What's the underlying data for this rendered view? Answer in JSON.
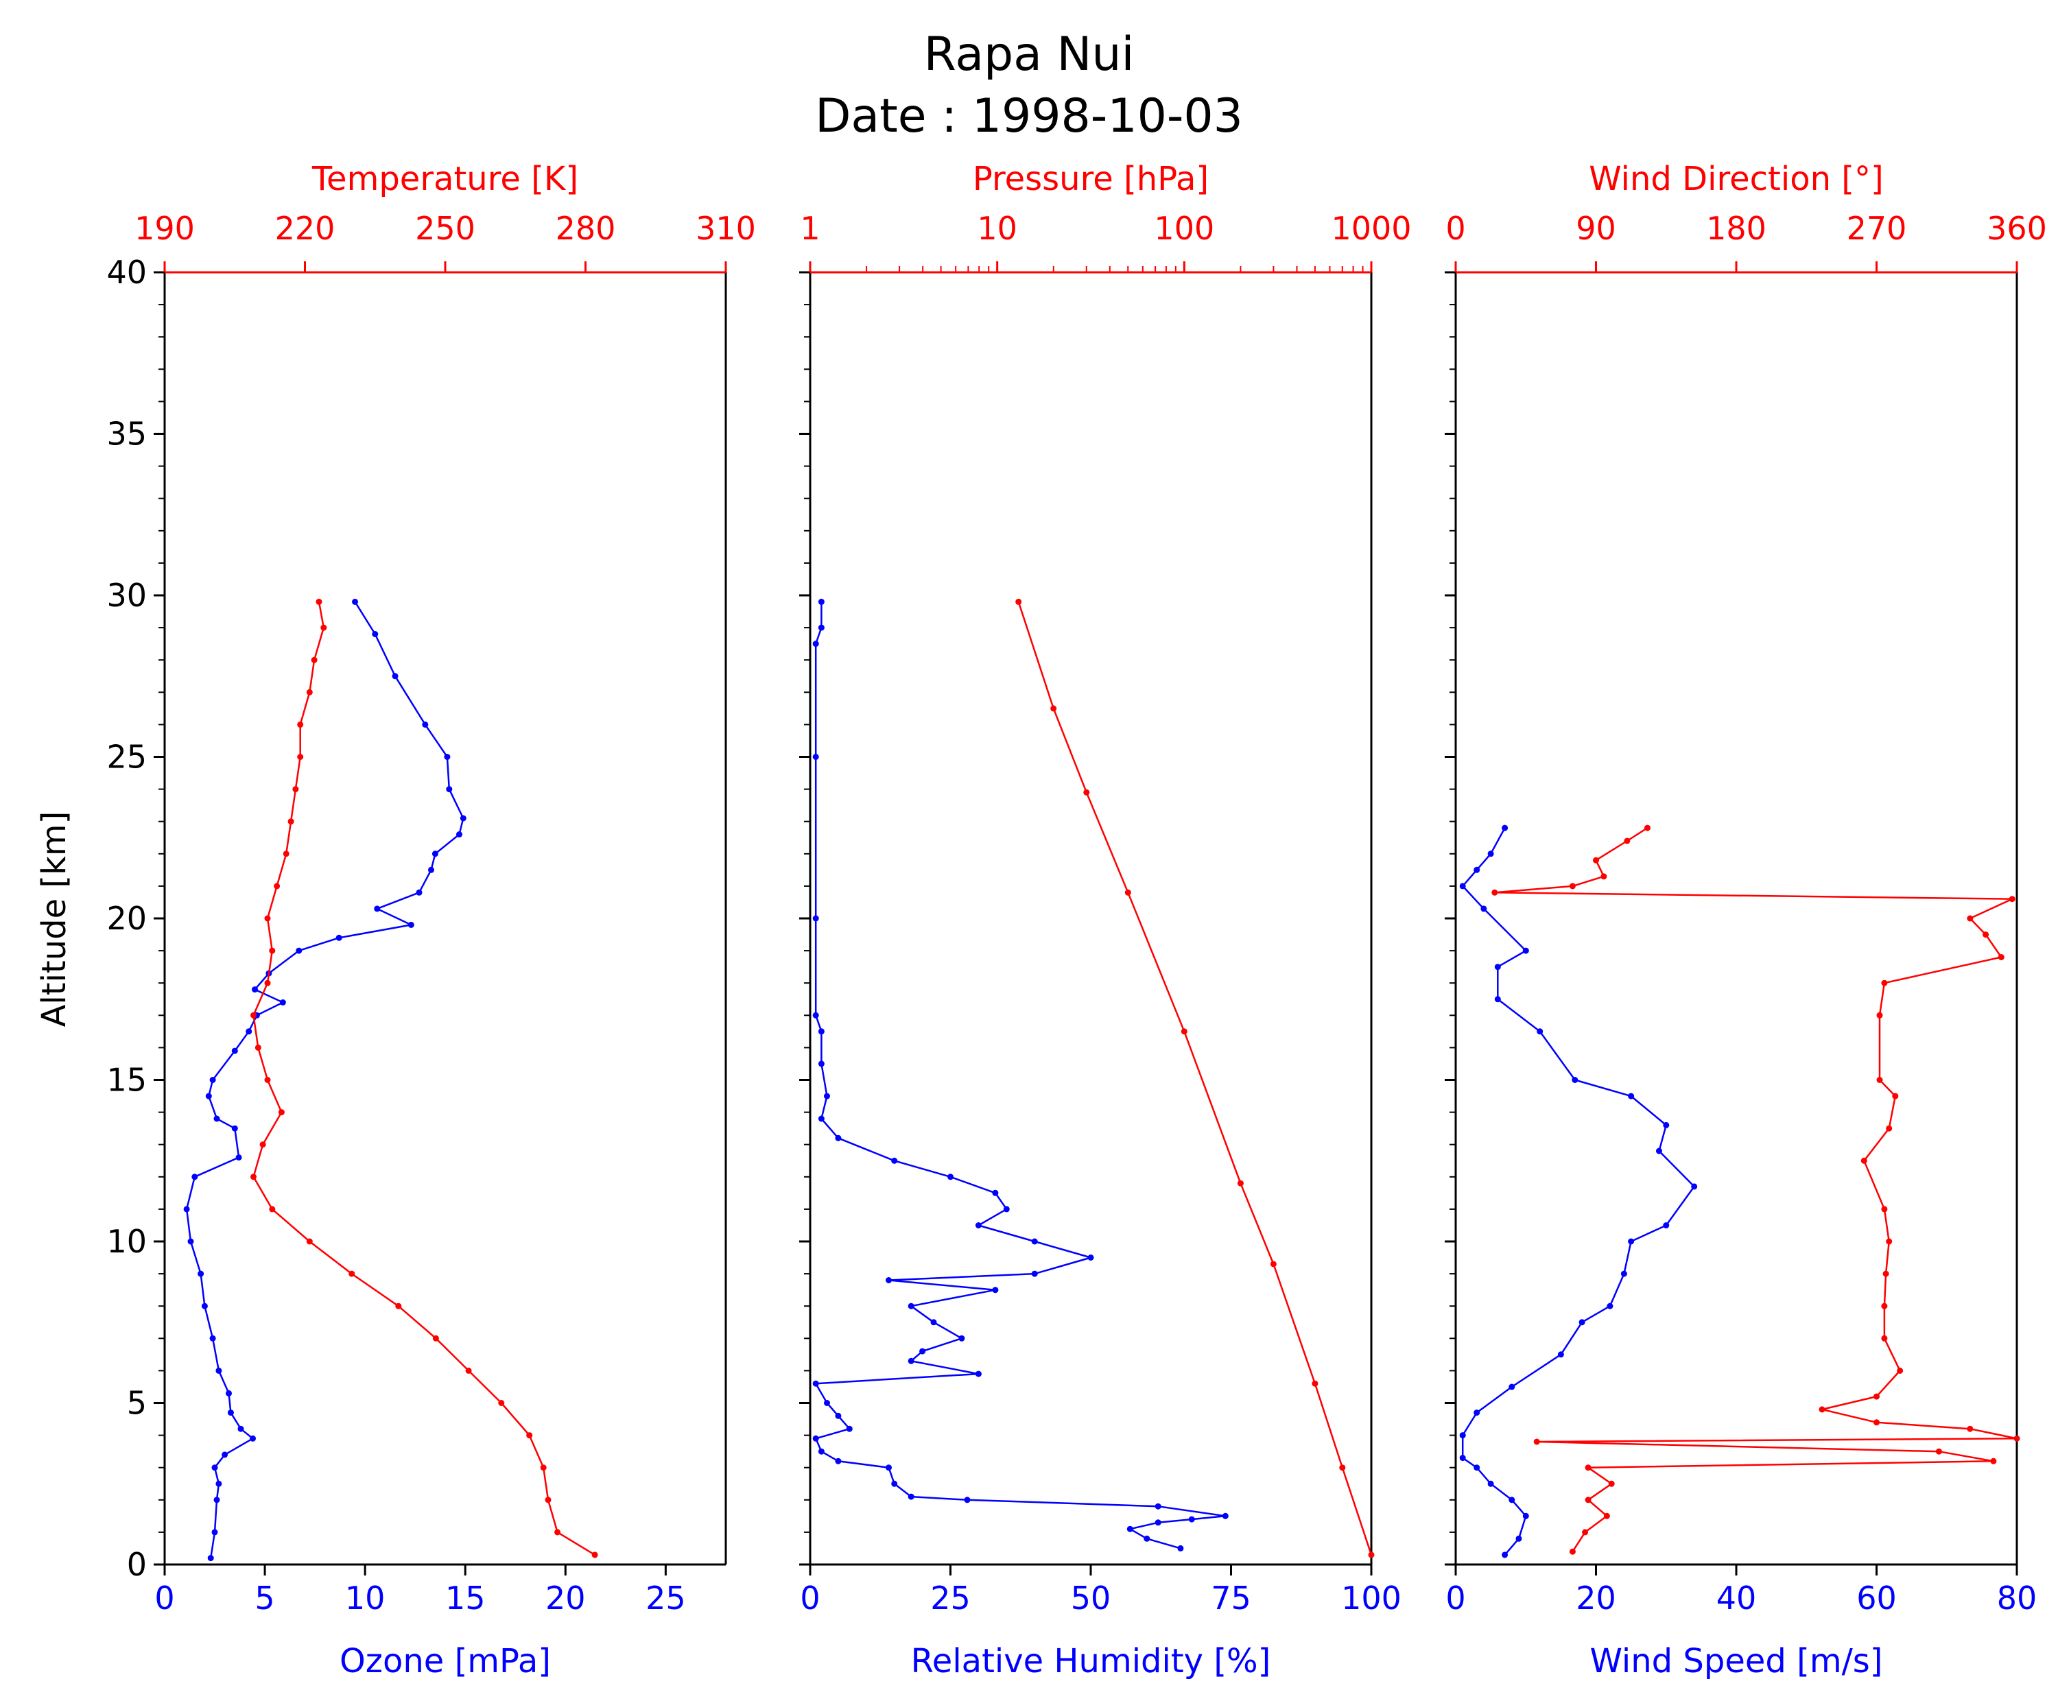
{
  "title_line1": "Rapa Nui",
  "title_line2": "Date : 1998-10-03",
  "colors": {
    "primary": "#0000ff",
    "secondary": "#ff0000",
    "frame": "#000000"
  },
  "shared_y": {
    "label": "Altitude [km]",
    "range": [
      0,
      40
    ],
    "ticks": [
      "0",
      "5",
      "10",
      "15",
      "20",
      "25",
      "30",
      "35",
      "40"
    ]
  },
  "chart_data": [
    {
      "type": "line",
      "bottom_axis": {
        "label": "Ozone [mPa]",
        "range": [
          0,
          28
        ],
        "ticks": [
          "0",
          "5",
          "10",
          "15",
          "20",
          "25"
        ],
        "tick_values": [
          0,
          5,
          10,
          15,
          20,
          25
        ]
      },
      "top_axis": {
        "label": "Temperature [K]",
        "range": [
          190,
          310
        ],
        "ticks": [
          "190",
          "220",
          "250",
          "280",
          "310"
        ],
        "tick_values": [
          190,
          220,
          250,
          280,
          310
        ]
      },
      "series": [
        {
          "axis": "bottom",
          "color": "blue",
          "points": [
            [
              2.3,
              0.2
            ],
            [
              2.5,
              1.0
            ],
            [
              2.6,
              2.0
            ],
            [
              2.7,
              2.5
            ],
            [
              2.5,
              3.0
            ],
            [
              3.0,
              3.4
            ],
            [
              4.4,
              3.9
            ],
            [
              3.8,
              4.2
            ],
            [
              3.3,
              4.7
            ],
            [
              3.2,
              5.3
            ],
            [
              2.7,
              6.0
            ],
            [
              2.4,
              7.0
            ],
            [
              2.0,
              8.0
            ],
            [
              1.8,
              9.0
            ],
            [
              1.3,
              10.0
            ],
            [
              1.1,
              11.0
            ],
            [
              1.5,
              12.0
            ],
            [
              3.7,
              12.6
            ],
            [
              3.5,
              13.5
            ],
            [
              2.6,
              13.8
            ],
            [
              2.2,
              14.5
            ],
            [
              2.4,
              15.0
            ],
            [
              3.5,
              15.9
            ],
            [
              4.2,
              16.5
            ],
            [
              4.6,
              17.0
            ],
            [
              5.9,
              17.4
            ],
            [
              4.5,
              17.8
            ],
            [
              5.2,
              18.3
            ],
            [
              6.7,
              19.0
            ],
            [
              8.7,
              19.4
            ],
            [
              12.3,
              19.8
            ],
            [
              10.6,
              20.3
            ],
            [
              12.7,
              20.8
            ],
            [
              13.3,
              21.5
            ],
            [
              13.5,
              22.0
            ],
            [
              14.7,
              22.6
            ],
            [
              14.9,
              23.1
            ],
            [
              14.2,
              24.0
            ],
            [
              14.1,
              25.0
            ],
            [
              13.0,
              26.0
            ],
            [
              11.5,
              27.5
            ],
            [
              10.5,
              28.8
            ],
            [
              9.5,
              29.8
            ]
          ]
        },
        {
          "axis": "top",
          "color": "red",
          "points": [
            [
              282.0,
              0.3
            ],
            [
              274.0,
              1.0
            ],
            [
              272.0,
              2.0
            ],
            [
              271.0,
              3.0
            ],
            [
              268.0,
              4.0
            ],
            [
              262.0,
              5.0
            ],
            [
              255.0,
              6.0
            ],
            [
              248.0,
              7.0
            ],
            [
              240.0,
              8.0
            ],
            [
              230.0,
              9.0
            ],
            [
              221.0,
              10.0
            ],
            [
              213.0,
              11.0
            ],
            [
              209.0,
              12.0
            ],
            [
              211.0,
              13.0
            ],
            [
              215.0,
              14.0
            ],
            [
              212.0,
              15.0
            ],
            [
              210.0,
              16.0
            ],
            [
              209.0,
              17.0
            ],
            [
              212.0,
              18.0
            ],
            [
              213.0,
              19.0
            ],
            [
              212.0,
              20.0
            ],
            [
              214.0,
              21.0
            ],
            [
              216.0,
              22.0
            ],
            [
              217.0,
              23.0
            ],
            [
              218.0,
              24.0
            ],
            [
              219.0,
              25.0
            ],
            [
              219.0,
              26.0
            ],
            [
              221.0,
              27.0
            ],
            [
              222.0,
              28.0
            ],
            [
              224.0,
              29.0
            ],
            [
              223.0,
              29.8
            ]
          ]
        }
      ]
    },
    {
      "type": "line",
      "bottom_axis": {
        "label": "Relative Humidity [%]",
        "range": [
          0,
          100
        ],
        "ticks": [
          "0",
          "25",
          "50",
          "75",
          "100"
        ],
        "tick_values": [
          0,
          25,
          50,
          75,
          100
        ]
      },
      "top_axis": {
        "label": "Pressure [hPa]",
        "range": [
          1,
          1000
        ],
        "scale": "log",
        "ticks": [
          "1",
          "10",
          "100",
          "1000"
        ],
        "tick_values": [
          1,
          10,
          100,
          1000
        ]
      },
      "series": [
        {
          "axis": "bottom",
          "color": "blue",
          "points": [
            [
              66,
              0.5
            ],
            [
              60,
              0.8
            ],
            [
              57,
              1.1
            ],
            [
              62,
              1.3
            ],
            [
              68,
              1.4
            ],
            [
              74,
              1.5
            ],
            [
              62,
              1.8
            ],
            [
              28,
              2.0
            ],
            [
              18,
              2.1
            ],
            [
              15,
              2.5
            ],
            [
              14,
              3.0
            ],
            [
              5,
              3.2
            ],
            [
              2,
              3.5
            ],
            [
              1,
              3.9
            ],
            [
              7,
              4.2
            ],
            [
              5,
              4.6
            ],
            [
              3,
              5.0
            ],
            [
              1,
              5.6
            ],
            [
              30,
              5.9
            ],
            [
              18,
              6.3
            ],
            [
              20,
              6.6
            ],
            [
              27,
              7.0
            ],
            [
              22,
              7.5
            ],
            [
              18,
              8.0
            ],
            [
              33,
              8.5
            ],
            [
              14,
              8.8
            ],
            [
              40,
              9.0
            ],
            [
              50,
              9.5
            ],
            [
              40,
              10.0
            ],
            [
              30,
              10.5
            ],
            [
              35,
              11.0
            ],
            [
              33,
              11.5
            ],
            [
              25,
              12.0
            ],
            [
              15,
              12.5
            ],
            [
              5,
              13.2
            ],
            [
              2,
              13.8
            ],
            [
              3,
              14.5
            ],
            [
              2,
              15.5
            ],
            [
              2,
              16.5
            ],
            [
              1,
              17.0
            ],
            [
              1,
              20.0
            ],
            [
              1,
              25.0
            ],
            [
              1,
              28.5
            ],
            [
              2,
              29.0
            ],
            [
              2,
              29.8
            ]
          ]
        },
        {
          "axis": "top",
          "color": "red",
          "points": [
            [
              1000,
              0.3
            ],
            [
              700,
              3.0
            ],
            [
              500,
              5.6
            ],
            [
              300,
              9.3
            ],
            [
              200,
              11.8
            ],
            [
              100,
              16.5
            ],
            [
              50,
              20.8
            ],
            [
              30,
              23.9
            ],
            [
              20,
              26.5
            ],
            [
              13,
              29.8
            ]
          ]
        }
      ]
    },
    {
      "type": "line",
      "bottom_axis": {
        "label": "Wind Speed [m/s]",
        "range": [
          0,
          80
        ],
        "ticks": [
          "0",
          "20",
          "40",
          "60",
          "80"
        ],
        "tick_values": [
          0,
          20,
          40,
          60,
          80
        ]
      },
      "top_axis": {
        "label": "Wind Direction [°]",
        "range": [
          0,
          360
        ],
        "ticks": [
          "0",
          "90",
          "180",
          "270",
          "360"
        ],
        "tick_values": [
          0,
          90,
          180,
          270,
          360
        ]
      },
      "series": [
        {
          "axis": "bottom",
          "color": "blue",
          "points": [
            [
              7,
              0.3
            ],
            [
              9,
              0.8
            ],
            [
              10,
              1.5
            ],
            [
              8,
              2.0
            ],
            [
              5,
              2.5
            ],
            [
              3,
              3.0
            ],
            [
              1,
              3.3
            ],
            [
              1,
              4.0
            ],
            [
              3,
              4.7
            ],
            [
              8,
              5.5
            ],
            [
              15,
              6.5
            ],
            [
              18,
              7.5
            ],
            [
              22,
              8.0
            ],
            [
              24,
              9.0
            ],
            [
              25,
              10.0
            ],
            [
              30,
              10.5
            ],
            [
              34,
              11.7
            ],
            [
              29,
              12.8
            ],
            [
              30,
              13.6
            ],
            [
              25,
              14.5
            ],
            [
              17,
              15.0
            ],
            [
              12,
              16.5
            ],
            [
              6,
              17.5
            ],
            [
              6,
              18.5
            ],
            [
              10,
              19.0
            ],
            [
              4,
              20.3
            ],
            [
              1,
              21.0
            ],
            [
              3,
              21.5
            ],
            [
              5,
              22.0
            ],
            [
              7,
              22.8
            ]
          ]
        },
        {
          "axis": "top",
          "color": "red",
          "points": [
            [
              75,
              0.4
            ],
            [
              83,
              1.0
            ],
            [
              97,
              1.5
            ],
            [
              85,
              2.0
            ],
            [
              100,
              2.5
            ],
            [
              85,
              3.0
            ],
            [
              345,
              3.2
            ],
            [
              310,
              3.5
            ],
            [
              52,
              3.8
            ],
            [
              360,
              3.9
            ],
            [
              330,
              4.2
            ],
            [
              270,
              4.4
            ],
            [
              235,
              4.8
            ],
            [
              270,
              5.2
            ],
            [
              285,
              6.0
            ],
            [
              275,
              7.0
            ],
            [
              275,
              8.0
            ],
            [
              276,
              9.0
            ],
            [
              278,
              10.0
            ],
            [
              275,
              11.0
            ],
            [
              262,
              12.5
            ],
            [
              278,
              13.5
            ],
            [
              282,
              14.5
            ],
            [
              272,
              15.0
            ],
            [
              272,
              17.0
            ],
            [
              275,
              18.0
            ],
            [
              350,
              18.8
            ],
            [
              340,
              19.5
            ],
            [
              330,
              20.0
            ],
            [
              357,
              20.6
            ],
            [
              25,
              20.8
            ],
            [
              75,
              21.0
            ],
            [
              95,
              21.3
            ],
            [
              90,
              21.8
            ],
            [
              110,
              22.4
            ],
            [
              123,
              22.8
            ]
          ]
        }
      ]
    }
  ]
}
